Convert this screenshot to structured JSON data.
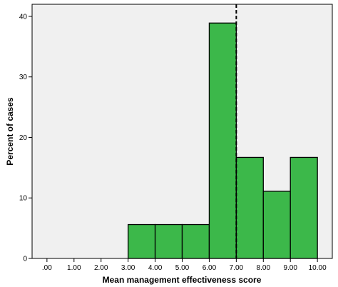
{
  "chart_data": {
    "type": "bar",
    "subtype": "histogram",
    "title": "",
    "xlabel": "Mean management effectiveness score",
    "ylabel": "Percent of cases",
    "bins": [
      {
        "start": 3,
        "end": 4,
        "value": 5.6
      },
      {
        "start": 4,
        "end": 5,
        "value": 5.6
      },
      {
        "start": 5,
        "end": 6,
        "value": 5.6
      },
      {
        "start": 6,
        "end": 7,
        "value": 38.9
      },
      {
        "start": 7,
        "end": 8,
        "value": 16.7
      },
      {
        "start": 8,
        "end": 9,
        "value": 11.1
      },
      {
        "start": 9,
        "end": 10,
        "value": 16.7
      }
    ],
    "xlim": [
      -0.55,
      10.55
    ],
    "ylim": [
      0,
      42
    ],
    "x_ticks": [
      0,
      1,
      2,
      3,
      4,
      5,
      6,
      7,
      8,
      9,
      10
    ],
    "x_tick_labels": [
      ".00",
      "1.00",
      "2.00",
      "3.00",
      "4.00",
      "5.00",
      "6.00",
      "7.00",
      "8.00",
      "9.00",
      "10.00"
    ],
    "y_ticks": [
      0,
      10,
      20,
      30,
      40
    ],
    "y_tick_labels": [
      "0",
      "10",
      "20",
      "30",
      "40"
    ],
    "reference_line": {
      "x": 7,
      "style": "dashed",
      "color": "#000000"
    },
    "grid": false,
    "legend": "none",
    "colors": {
      "bar_fill": "#3cb84a",
      "bar_stroke": "#000000",
      "plot_background": "#f0f0f0",
      "axis": "#000000"
    }
  }
}
